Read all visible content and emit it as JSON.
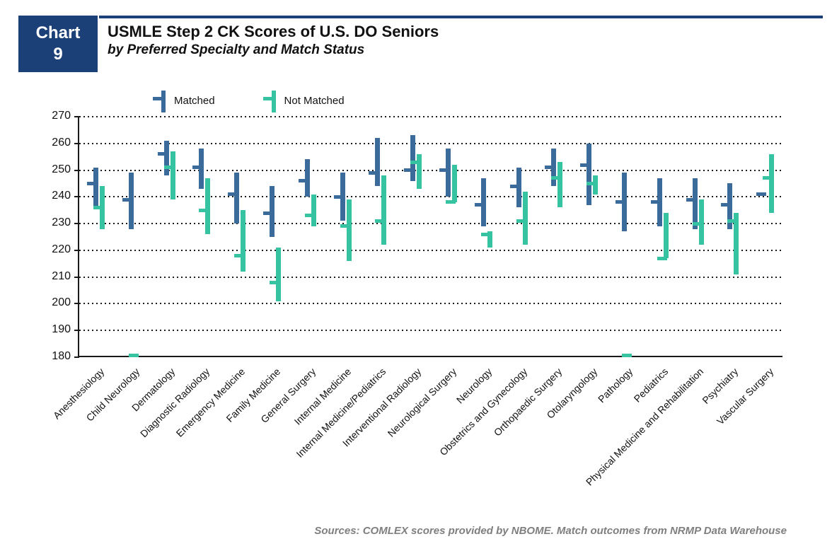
{
  "badge": {
    "line1": "Chart",
    "line2": "9"
  },
  "header": {
    "title": "USMLE Step 2 CK Scores of U.S. DO Seniors",
    "subtitle": "by Preferred Specialty and Match Status"
  },
  "colors": {
    "navy": "#1B4077",
    "matched": "#3A6B9B",
    "not_matched": "#35C3A2",
    "axis": "#1a1a1a",
    "source_text": "#7f7f7f"
  },
  "footer": {
    "source": "Sources: COMLEX scores provided by NBOME. Match outcomes from NRMP Data Warehouse"
  },
  "chart_data": {
    "type": "bar",
    "subtype": "floating-range-bars-with-mean-tick",
    "title": "USMLE Step 2 CK Scores of U.S. DO Seniors by Preferred Specialty and Match Status",
    "xlabel": "",
    "ylabel": "",
    "ylim": [
      180,
      270
    ],
    "yticks": [
      270,
      260,
      250,
      240,
      230,
      220,
      210,
      200,
      190,
      180
    ],
    "grid": "dotted-horizontal",
    "legend_position": "top",
    "legend": [
      "Matched",
      "Not Matched"
    ],
    "categories": [
      "Anesthesiology",
      "Child Neurology",
      "Dermatology",
      "Diagnostic Radiology",
      "Emergency Medicine",
      "Family Medicine",
      "General Surgery",
      "Internal Medicine",
      "Internal Medicine/Pediatrics",
      "Interventional Radiology",
      "Neurological Surgery",
      "Neurology",
      "Obstetrics and Gynecology",
      "Orthopaedic Surgery",
      "Otolaryngology",
      "Pathology",
      "Pediatrics",
      "Physical Medicine and Rehabilitation",
      "Psychiatry",
      "Vascular Surgery"
    ],
    "series": [
      {
        "name": "Matched",
        "color": "#3A6B9B",
        "values": [
          {
            "high": 251,
            "low": 236,
            "mean": 245
          },
          {
            "high": 249,
            "low": 228,
            "mean": 239
          },
          {
            "high": 261,
            "low": 248,
            "mean": 256
          },
          {
            "high": 258,
            "low": 243,
            "mean": 251
          },
          {
            "high": 249,
            "low": 230,
            "mean": 241
          },
          {
            "high": 244,
            "low": 225,
            "mean": 234
          },
          {
            "high": 254,
            "low": 240,
            "mean": 246
          },
          {
            "high": 249,
            "low": 231,
            "mean": 240
          },
          {
            "high": 262,
            "low": 244,
            "mean": 249
          },
          {
            "high": 263,
            "low": 246,
            "mean": 250
          },
          {
            "high": 258,
            "low": 240,
            "mean": 250
          },
          {
            "high": 247,
            "low": 229,
            "mean": 237
          },
          {
            "high": 251,
            "low": 236,
            "mean": 244
          },
          {
            "high": 258,
            "low": 244,
            "mean": 251
          },
          {
            "high": 260,
            "low": 237,
            "mean": 252
          },
          {
            "high": 249,
            "low": 227,
            "mean": 238
          },
          {
            "high": 247,
            "low": 229,
            "mean": 238
          },
          {
            "high": 247,
            "low": 228,
            "mean": 239
          },
          {
            "high": 245,
            "low": 228,
            "mean": 237
          },
          {
            "high": 241,
            "low": 241,
            "mean": 241
          }
        ]
      },
      {
        "name": "Not Matched",
        "color": "#35C3A2",
        "values": [
          {
            "high": 244,
            "low": 228,
            "mean": 236
          },
          {
            "high": 180,
            "low": 180,
            "mean": 180
          },
          {
            "high": 257,
            "low": 239,
            "mean": 251
          },
          {
            "high": 247,
            "low": 226,
            "mean": 235
          },
          {
            "high": 235,
            "low": 212,
            "mean": 218
          },
          {
            "high": 221,
            "low": 201,
            "mean": 208
          },
          {
            "high": 241,
            "low": 229,
            "mean": 233
          },
          {
            "high": 239,
            "low": 216,
            "mean": 229
          },
          {
            "high": 248,
            "low": 222,
            "mean": 231
          },
          {
            "high": 256,
            "low": 243,
            "mean": 253
          },
          {
            "high": 252,
            "low": 238,
            "mean": 238
          },
          {
            "high": 227,
            "low": 221,
            "mean": 226
          },
          {
            "high": 242,
            "low": 222,
            "mean": 231
          },
          {
            "high": 253,
            "low": 236,
            "mean": 247
          },
          {
            "high": 248,
            "low": 241,
            "mean": 245
          },
          {
            "high": 180,
            "low": 180,
            "mean": 180
          },
          {
            "high": 234,
            "low": 217,
            "mean": 217
          },
          {
            "high": 239,
            "low": 222,
            "mean": 230
          },
          {
            "high": 234,
            "low": 211,
            "mean": 231
          },
          {
            "high": 256,
            "low": 234,
            "mean": 247
          }
        ]
      }
    ]
  }
}
